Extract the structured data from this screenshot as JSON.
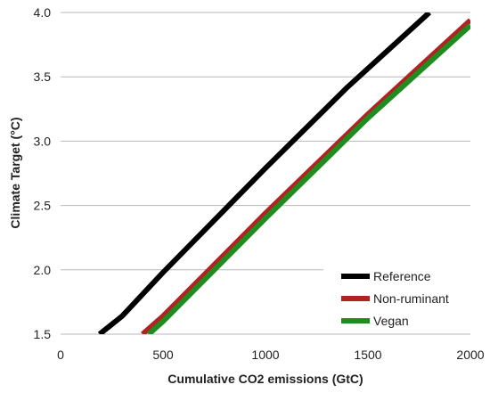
{
  "chart_data": {
    "type": "line",
    "title": "",
    "xlabel": "Cumulative CO2 emissions (GtC)",
    "ylabel": "Climate Target (°C)",
    "xlim": [
      0,
      2000
    ],
    "ylim": [
      1.5,
      4.0
    ],
    "xticks": [
      0,
      500,
      1000,
      1500,
      2000
    ],
    "yticks": [
      1.5,
      2.0,
      2.5,
      3.0,
      3.5,
      4.0
    ],
    "xtick_labels": [
      "0",
      "500",
      "1000",
      "1500",
      "2000"
    ],
    "ytick_labels": [
      "1.5",
      "2.0",
      "2.5",
      "3.0",
      "3.5",
      "4.0"
    ],
    "grid": "horizontal",
    "legend_position": "bottom-right",
    "series": [
      {
        "name": "Reference",
        "color": "#000000",
        "points": [
          [
            190,
            1.5
          ],
          [
            300,
            1.64
          ],
          [
            500,
            1.98
          ],
          [
            1000,
            2.79
          ],
          [
            1400,
            3.42
          ],
          [
            1800,
            4.0
          ]
        ]
      },
      {
        "name": "Non-ruminant",
        "color": "#b22222",
        "points": [
          [
            400,
            1.5
          ],
          [
            500,
            1.64
          ],
          [
            1000,
            2.44
          ],
          [
            1500,
            3.21
          ],
          [
            2000,
            3.94
          ]
        ]
      },
      {
        "name": "Vegan",
        "color": "#1e8c1e",
        "points": [
          [
            430,
            1.5
          ],
          [
            500,
            1.6
          ],
          [
            1000,
            2.4
          ],
          [
            1500,
            3.18
          ],
          [
            2000,
            3.9
          ]
        ]
      }
    ]
  }
}
